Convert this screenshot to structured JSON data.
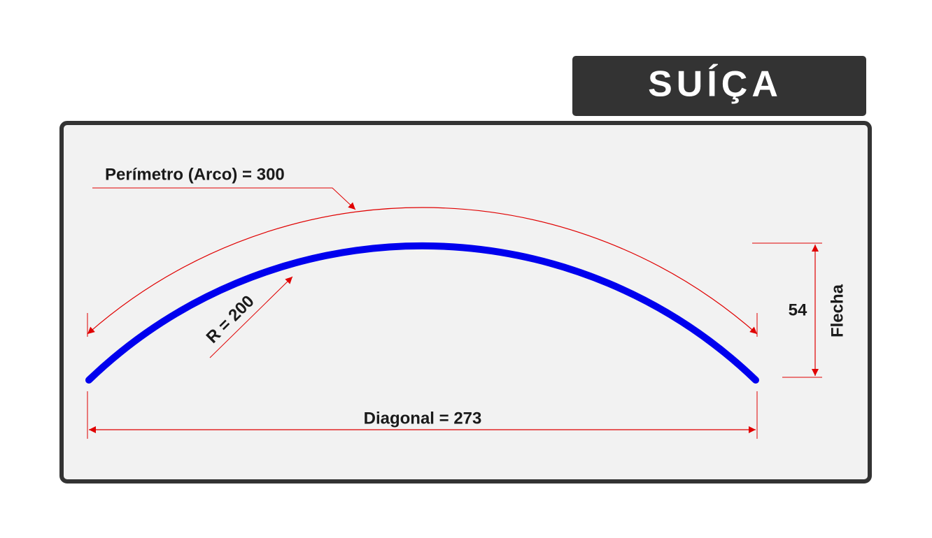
{
  "header": {
    "title": "SUÍÇA"
  },
  "labels": {
    "perimeter": "Perímetro (Arco) = 300",
    "radius": "R = 200",
    "sagitta_value": "54",
    "sagitta_name": "Flecha",
    "chord": "Diagonal = 273"
  }
}
